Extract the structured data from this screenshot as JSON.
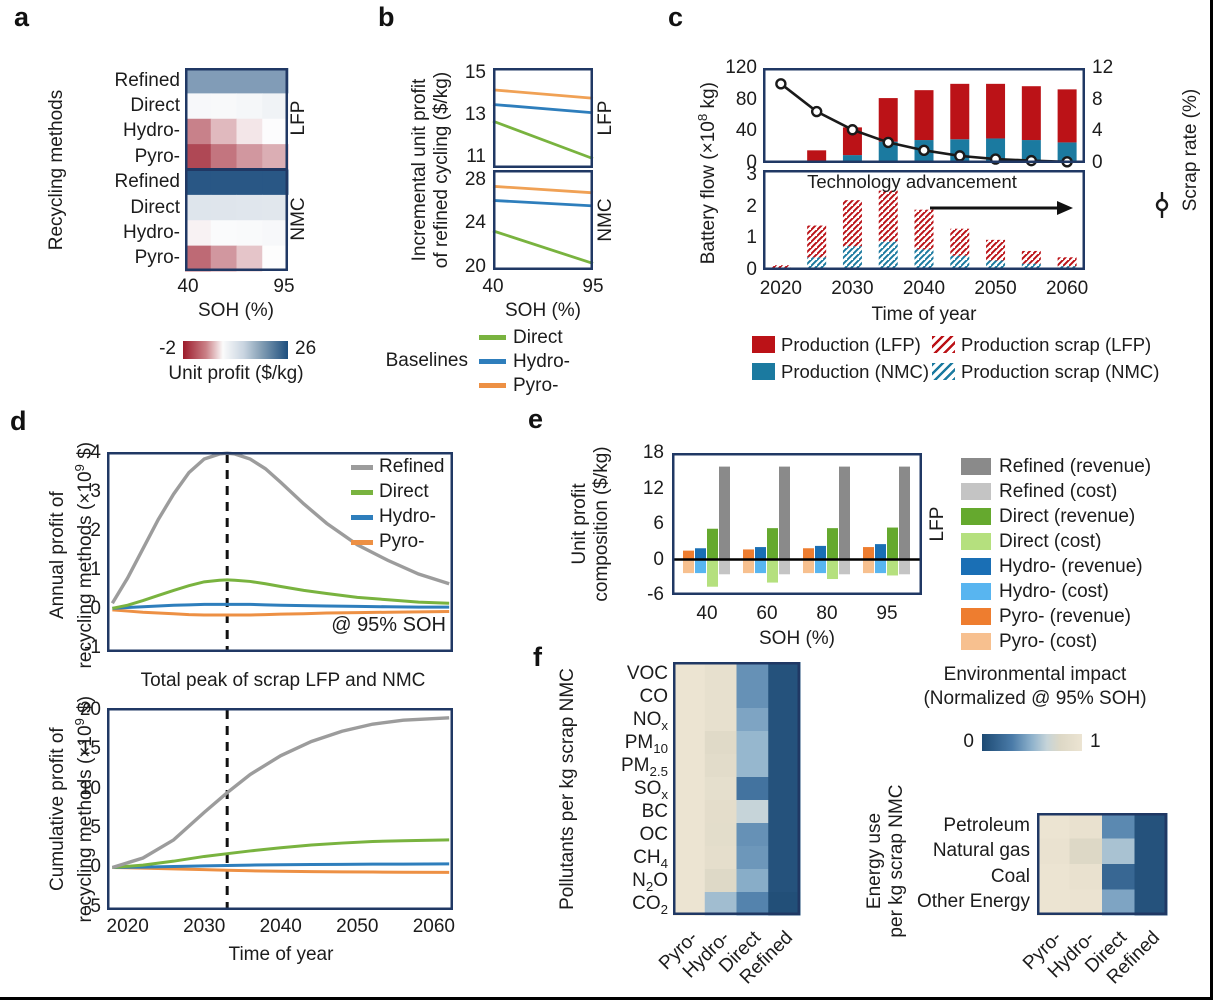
{
  "colors": {
    "lfp_red": "#bb1217",
    "nmc_teal": "#1b7aa0",
    "refined_gray": "#9c9c9c",
    "direct_green": "#79b33f",
    "hydro_blue": "#2e7ebc",
    "pyro_orange": "#ed9044",
    "box_navy": "#203864",
    "diverging": {
      "neg_limit": -2,
      "neg_color": "#9c1b2b",
      "mid_color": "#fdfdfd",
      "pos_limit": 26,
      "pos_color": "#17497b"
    },
    "env_stops": [
      [
        0,
        "#1d4a73"
      ],
      [
        0.3,
        "#4a7ba8"
      ],
      [
        0.5,
        "#8fb2cc"
      ],
      [
        0.65,
        "#c6d4d9"
      ],
      [
        0.78,
        "#ddd8c6"
      ],
      [
        1,
        "#ece4d2"
      ]
    ],
    "diverging_bar_stops": [
      [
        0,
        "#9c1b2b"
      ],
      [
        0.22,
        "#ca8187"
      ],
      [
        0.38,
        "#fbfbfb"
      ],
      [
        0.58,
        "#c8d4e0"
      ],
      [
        0.76,
        "#7e9ab1"
      ],
      [
        1,
        "#1d4e7e"
      ]
    ]
  },
  "chart_data": [
    {
      "id": "a",
      "type": "heatmap",
      "panel_label": "a",
      "ylabel": "Recycling methods",
      "xlabel": "SOH (%)",
      "x_ticks": [
        "40",
        "95"
      ],
      "rows": [
        "Refined",
        "Direct",
        "Hydro-",
        "Pyro-",
        "Refined",
        "Direct",
        "Hydro-",
        "Pyro-"
      ],
      "row_groups": [
        "LFP",
        "NMC"
      ],
      "values": [
        [
          14,
          14,
          14,
          14
        ],
        [
          0.7,
          0.6,
          0.9,
          1.5
        ],
        [
          -1.1,
          -0.6,
          -0.2,
          0.1
        ],
        [
          -1.6,
          -1.2,
          -0.9,
          -0.7
        ],
        [
          24,
          24,
          24,
          24
        ],
        [
          3.5,
          3.4,
          3.3,
          3.2
        ],
        [
          -0.1,
          0.3,
          0.5,
          0.7
        ],
        [
          -1.3,
          -0.9,
          -0.5,
          0
        ]
      ],
      "colorbar": {
        "min": "-2",
        "max": "26",
        "label": "Unit profit ($/kg)"
      }
    },
    {
      "id": "b",
      "type": "line",
      "panel_label": "b",
      "ylabel": "Incremental unit profit\nof refined cycling ($/kg)",
      "xlabel": "SOH (%)",
      "x": [
        40,
        95
      ],
      "x_ticks": [
        "40",
        "95"
      ],
      "subplots": [
        {
          "group": "LFP",
          "ylim": [
            10.45,
            15.25
          ],
          "y_ticks": [
            15,
            13,
            11
          ],
          "series": [
            {
              "name": "Pyro-",
              "values": [
                14.2,
                13.8
              ]
            },
            {
              "name": "Hydro-",
              "values": [
                13.5,
                13.1
              ]
            },
            {
              "name": "Direct",
              "values": [
                12.7,
                10.9
              ]
            }
          ]
        },
        {
          "group": "NMC",
          "ylim": [
            19.7,
            28.9
          ],
          "y_ticks": [
            28,
            24,
            20
          ],
          "series": [
            {
              "name": "Pyro-",
              "values": [
                27.4,
                26.8
              ]
            },
            {
              "name": "Hydro-",
              "values": [
                26.1,
                25.6
              ]
            },
            {
              "name": "Direct",
              "values": [
                23.3,
                20.3
              ]
            }
          ]
        }
      ],
      "legend": {
        "title": "Baselines",
        "items": [
          {
            "label": "Direct",
            "color": "#79b33f"
          },
          {
            "label": "Hydro-",
            "color": "#2e7ebc"
          },
          {
            "label": "Pyro-",
            "color": "#ed9044"
          }
        ]
      }
    },
    {
      "id": "c",
      "type": "bar-line",
      "panel_label": "c",
      "ylabel": "Battery flow (×10^{8} kg)",
      "ylabel_right": "Scrap rate (%)",
      "xlabel": "Time of year",
      "years": [
        2020,
        2025,
        2030,
        2035,
        2040,
        2045,
        2050,
        2055,
        2060
      ],
      "x_ticks": [
        "2020",
        "2030",
        "2040",
        "2050",
        "2060"
      ],
      "top": {
        "ylim": [
          0,
          120
        ],
        "y_ticks": [
          120,
          80,
          40,
          0
        ],
        "right_ylim": [
          0,
          12
        ],
        "right_y_ticks": [
          12,
          8,
          4,
          0
        ],
        "production_nmc": [
          0.2,
          3,
          10,
          27,
          29,
          30,
          31,
          29,
          26
        ],
        "production_lfp": [
          0.6,
          13,
          35,
          55,
          63,
          70,
          69,
          68,
          67
        ],
        "scrap_rate": [
          10,
          6.5,
          4.2,
          2.6,
          1.6,
          0.9,
          0.5,
          0.3,
          0.15
        ]
      },
      "bottom": {
        "ylim": [
          0,
          3.15
        ],
        "y_ticks": [
          3,
          2,
          1,
          0
        ],
        "scrap_nmc": [
          0.02,
          0.4,
          0.75,
          0.9,
          0.65,
          0.45,
          0.3,
          0.2,
          0.12
        ],
        "scrap_lfp": [
          0.13,
          1.0,
          1.45,
          1.6,
          1.25,
          0.85,
          0.65,
          0.4,
          0.28
        ],
        "annotation": "Technology advancement"
      },
      "legend": [
        {
          "label": "Production (LFP)",
          "color": "#bb1217",
          "hatch": false
        },
        {
          "label": "Production (NMC)",
          "color": "#1b7aa0",
          "hatch": false
        },
        {
          "label": "Production scrap (LFP)",
          "color": "#bb1217",
          "hatch": true
        },
        {
          "label": "Production scrap (NMC)",
          "color": "#1b7aa0",
          "hatch": true
        }
      ]
    },
    {
      "id": "d",
      "type": "line",
      "panel_label": "d",
      "xlabel": "Time of year",
      "x_ticks": [
        "2020",
        "2030",
        "2040",
        "2050",
        "2060"
      ],
      "xlim": [
        2017.3,
        2062.5
      ],
      "caption": "Total peak of scrap LFP and NMC",
      "top": {
        "ylabel": "Annual profit of\nrecycling methods (×10^{9} $)",
        "ylim": [
          -1.1,
          4.03
        ],
        "y_ticks": [
          4,
          3,
          2,
          1,
          0,
          -1
        ],
        "x": [
          2018,
          2020,
          2022,
          2024,
          2026,
          2028,
          2030,
          2032,
          2033,
          2034,
          2036,
          2038,
          2040,
          2043,
          2046,
          2050,
          2054,
          2058,
          2062
        ],
        "series": [
          {
            "name": "Pyro-",
            "color": "#ed9044",
            "values": [
              -0.02,
              -0.05,
              -0.08,
              -0.1,
              -0.12,
              -0.14,
              -0.15,
              -0.15,
              -0.15,
              -0.15,
              -0.15,
              -0.14,
              -0.13,
              -0.12,
              -0.1,
              -0.09,
              -0.08,
              -0.07,
              -0.06
            ]
          },
          {
            "name": "Hydro-",
            "color": "#2e7ebc",
            "values": [
              0.02,
              0.04,
              0.06,
              0.08,
              0.1,
              0.11,
              0.12,
              0.12,
              0.12,
              0.12,
              0.12,
              0.11,
              0.1,
              0.09,
              0.08,
              0.07,
              0.06,
              0.05,
              0.05
            ]
          },
          {
            "name": "Direct",
            "color": "#79b33f",
            "values": [
              0.02,
              0.1,
              0.22,
              0.35,
              0.48,
              0.6,
              0.7,
              0.74,
              0.75,
              0.74,
              0.71,
              0.65,
              0.58,
              0.48,
              0.4,
              0.3,
              0.24,
              0.18,
              0.15
            ]
          },
          {
            "name": "Refined",
            "color": "#9c9c9c",
            "values": [
              0.15,
              0.8,
              1.55,
              2.3,
              2.95,
              3.5,
              3.85,
              3.98,
              4.0,
              3.98,
              3.85,
              3.6,
              3.25,
              2.7,
              2.2,
              1.65,
              1.25,
              0.9,
              0.65
            ]
          }
        ],
        "vline_x": 2033,
        "annotation": "@ 95% SOH"
      },
      "bottom": {
        "ylabel": "Cumulative profit of\nrecycling methods (×10^{9} $)",
        "ylim": [
          -5.4,
          20.25
        ],
        "y_ticks": [
          20,
          15,
          10,
          5,
          0,
          -5
        ],
        "x": [
          2018,
          2022,
          2026,
          2030,
          2033,
          2036,
          2040,
          2044,
          2048,
          2052,
          2056,
          2062
        ],
        "series": [
          {
            "name": "Pyro-",
            "color": "#ed9044",
            "values": [
              0,
              -0.08,
              -0.18,
              -0.28,
              -0.35,
              -0.42,
              -0.48,
              -0.52,
              -0.56,
              -0.58,
              -0.6,
              -0.62
            ]
          },
          {
            "name": "Hydro-",
            "color": "#2e7ebc",
            "values": [
              0,
              0.05,
              0.12,
              0.2,
              0.25,
              0.3,
              0.35,
              0.38,
              0.4,
              0.42,
              0.43,
              0.45
            ]
          },
          {
            "name": "Direct",
            "color": "#79b33f",
            "values": [
              0,
              0.3,
              0.8,
              1.4,
              1.75,
              2.1,
              2.5,
              2.85,
              3.1,
              3.3,
              3.4,
              3.5
            ]
          },
          {
            "name": "Refined",
            "color": "#9c9c9c",
            "values": [
              0,
              1.2,
              3.5,
              7.0,
              9.5,
              11.8,
              14.2,
              16.0,
              17.3,
              18.2,
              18.7,
              19.0
            ]
          }
        ],
        "vline_x": 2033
      },
      "legend": [
        {
          "label": "Refined",
          "color": "#9c9c9c"
        },
        {
          "label": "Direct",
          "color": "#79b33f"
        },
        {
          "label": "Hydro-",
          "color": "#2e7ebc"
        },
        {
          "label": "Pyro-",
          "color": "#ed9044"
        }
      ]
    },
    {
      "id": "e",
      "type": "bar",
      "panel_label": "e",
      "ylabel": "Unit profit\ncomposition ($/kg)",
      "xlabel": "SOH (%)",
      "categories": [
        "40",
        "60",
        "80",
        "95"
      ],
      "ylim": [
        -6,
        18
      ],
      "y_ticks": [
        18,
        12,
        6,
        0,
        -6
      ],
      "group_label_right": "LFP",
      "series": [
        {
          "name": "Pyro- (revenue)",
          "color": "#ee7d2f",
          "values": [
            1.5,
            1.7,
            1.9,
            2.1
          ]
        },
        {
          "name": "Hydro- (revenue)",
          "color": "#1a6fb5",
          "values": [
            1.9,
            2.1,
            2.3,
            2.6
          ]
        },
        {
          "name": "Direct (revenue)",
          "color": "#65a92e",
          "values": [
            5.2,
            5.3,
            5.3,
            5.4
          ]
        },
        {
          "name": "Refined (revenue)",
          "color": "#8a8a8a",
          "values": [
            15.7,
            15.7,
            15.7,
            15.7
          ]
        },
        {
          "name": "Pyro- (cost)",
          "color": "#f7c08f",
          "values": [
            -2.3,
            -2.3,
            -2.3,
            -2.3
          ]
        },
        {
          "name": "Hydro- (cost)",
          "color": "#58b5f0",
          "values": [
            -2.3,
            -2.3,
            -2.3,
            -2.3
          ]
        },
        {
          "name": "Direct (cost)",
          "color": "#b5e07e",
          "values": [
            -4.6,
            -3.9,
            -3.3,
            -2.7
          ]
        },
        {
          "name": "Refined (cost)",
          "color": "#c4c4c4",
          "values": [
            -2.5,
            -2.5,
            -2.5,
            -2.5
          ]
        }
      ],
      "legend": [
        {
          "label": "Refined (revenue)",
          "color": "#8a8a8a"
        },
        {
          "label": "Refined (cost)",
          "color": "#c4c4c4"
        },
        {
          "label": "Direct (revenue)",
          "color": "#65a92e"
        },
        {
          "label": "Direct (cost)",
          "color": "#b5e07e"
        },
        {
          "label": "Hydro- (revenue)",
          "color": "#1a6fb5"
        },
        {
          "label": "Hydro- (cost)",
          "color": "#58b5f0"
        },
        {
          "label": "Pyro- (revenue)",
          "color": "#ee7d2f"
        },
        {
          "label": "Pyro- (cost)",
          "color": "#f7c08f"
        }
      ]
    },
    {
      "id": "f",
      "type": "heatmap",
      "panel_label": "f",
      "pollutants": {
        "ylabel": "Pollutants per kg scrap NMC",
        "rows": [
          "VOC",
          "CO",
          "NO_{x}",
          "PM_{10}",
          "PM_{2.5}",
          "SO_{x}",
          "BC",
          "OC",
          "CH_{4}",
          "N_{2}O",
          "CO_{2}"
        ],
        "columns": [
          "Pyro-",
          "Hydro-",
          "Direct",
          "Refined"
        ],
        "values": [
          [
            1.0,
            0.93,
            0.38,
            0.05
          ],
          [
            1.0,
            0.93,
            0.38,
            0.05
          ],
          [
            1.0,
            0.92,
            0.45,
            0.05
          ],
          [
            1.0,
            0.82,
            0.52,
            0.05
          ],
          [
            1.0,
            0.86,
            0.52,
            0.05
          ],
          [
            1.0,
            0.9,
            0.25,
            0.05
          ],
          [
            1.0,
            0.88,
            0.65,
            0.05
          ],
          [
            1.0,
            0.87,
            0.38,
            0.05
          ],
          [
            1.0,
            0.89,
            0.4,
            0.05
          ],
          [
            1.0,
            0.8,
            0.48,
            0.05
          ],
          [
            1.0,
            0.55,
            0.33,
            0.03
          ]
        ]
      },
      "energy": {
        "ylabel": "Energy use\nper kg scrap NMC",
        "rows": [
          "Petroleum",
          "Natural gas",
          "Coal",
          "Other Energy"
        ],
        "columns": [
          "Pyro-",
          "Hydro-",
          "Direct",
          "Refined"
        ],
        "values": [
          [
            1.0,
            0.95,
            0.35,
            0.05
          ],
          [
            0.97,
            0.78,
            0.57,
            0.05
          ],
          [
            1.0,
            0.95,
            0.18,
            0.05
          ],
          [
            1.0,
            0.98,
            0.45,
            0.05
          ]
        ]
      },
      "colorbar": {
        "title_line1": "Environmental impact",
        "title_line2": "(Normalized @ 95% SOH)",
        "min": "0",
        "max": "1"
      }
    }
  ]
}
